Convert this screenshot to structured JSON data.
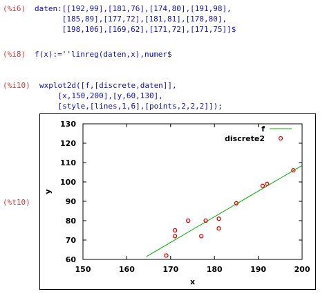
{
  "cells": [
    {
      "label": "(%i6)",
      "lines": [
        "daten:[[192,99],[181,76],[174,80],[191,98],",
        "      [185,89],[177,72],[181,81],[178,80],",
        "      [198,106],[169,62],[171,72],[171,75]]$"
      ]
    },
    {
      "label": "(%i8)",
      "lines": [
        "f(x):=''linreg(daten,x),numer$"
      ]
    },
    {
      "label": "(%i10)",
      "lines": [
        "wxplot2d([f,[discrete,daten]],",
        "    [x,150,200],[y,60,130],",
        "    [style,[lines,1,6],[points,2,2,2]]);"
      ]
    }
  ],
  "output_label": "(%t10)",
  "chart_data": {
    "type": "line",
    "xlabel": "x",
    "ylabel": "y",
    "xlim": [
      150,
      200
    ],
    "ylim": [
      60,
      130
    ],
    "xticks": [
      150,
      160,
      170,
      180,
      190,
      200
    ],
    "yticks": [
      60,
      70,
      80,
      90,
      100,
      110,
      120,
      130
    ],
    "legend": "top-right",
    "series": [
      {
        "name": "f",
        "type": "line",
        "color": "#00b000",
        "x": [
          164.5,
          200
        ],
        "values": [
          61.5,
          108.5
        ]
      },
      {
        "name": "discrete2",
        "type": "scatter",
        "color": "#e00000",
        "x": [
          192,
          181,
          174,
          191,
          185,
          177,
          181,
          178,
          198,
          169,
          171,
          171
        ],
        "values": [
          99,
          76,
          80,
          98,
          89,
          72,
          81,
          80,
          106,
          62,
          72,
          75
        ]
      }
    ]
  }
}
